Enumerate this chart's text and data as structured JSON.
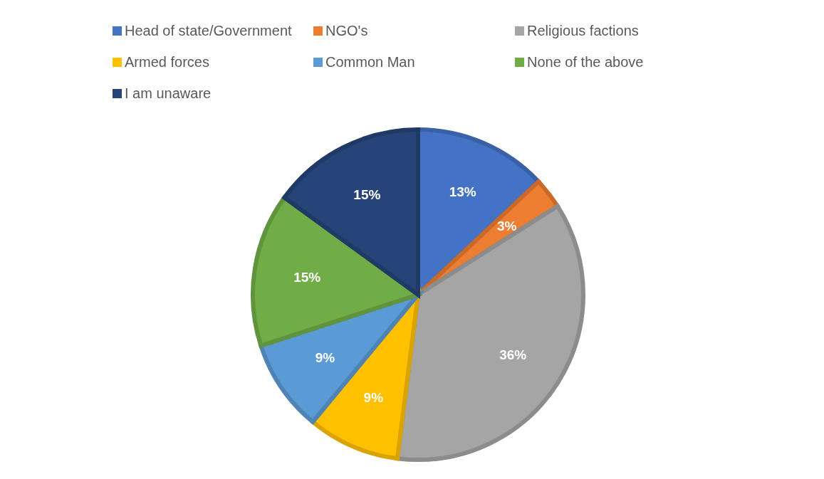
{
  "chart_data": {
    "type": "pie",
    "categories": [
      "Head of state/Government",
      "NGO's",
      "Religious factions",
      "Armed forces",
      "Common Man",
      "None of the above",
      "I am unaware"
    ],
    "values": [
      13,
      3,
      36,
      9,
      9,
      15,
      15
    ],
    "colors": [
      "#4472c4",
      "#ed7d31",
      "#a5a5a5",
      "#ffc000",
      "#5b9bd5",
      "#70ad47",
      "#264478"
    ],
    "value_labels": [
      "13%",
      "3%",
      "36%",
      "9%",
      "9%",
      "15%",
      "15%"
    ],
    "legend": "top"
  }
}
